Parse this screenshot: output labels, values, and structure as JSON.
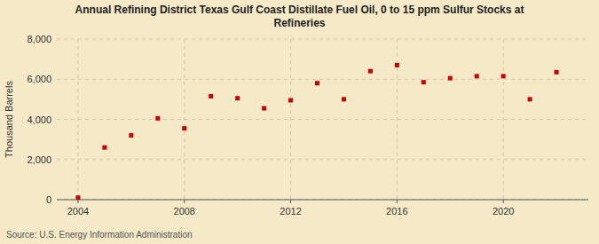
{
  "chart_data": {
    "type": "scatter",
    "title": "Annual Refining District Texas Gulf Coast Distillate Fuel Oil, 0 to 15 ppm Sulfur Stocks at\nRefineries",
    "y_label": "Thousand Barrels",
    "annotations": [
      "Source: U.S. Energy Information Administration"
    ],
    "x": [
      2004,
      2005,
      2006,
      2007,
      2008,
      2009,
      2010,
      2011,
      2012,
      2013,
      2014,
      2015,
      2016,
      2017,
      2018,
      2019,
      2020,
      2021,
      2022
    ],
    "values": [
      100,
      2600,
      3200,
      4050,
      3550,
      5150,
      5050,
      4550,
      4950,
      5800,
      5000,
      6400,
      6700,
      5850,
      6050,
      6150,
      6150,
      5000,
      6350
    ],
    "color": "#cc0000",
    "marker": "square",
    "xlim": [
      2003.2,
      2023.2
    ],
    "xticks": [
      2004,
      2008,
      2012,
      2016,
      2020
    ],
    "ylim": [
      0,
      8000
    ],
    "yticks": [
      0,
      {
        "value": 2000,
        "label": "2,000"
      },
      {
        "value": 4000,
        "label": "4,000"
      },
      {
        "value": 6000,
        "label": "6,000"
      },
      {
        "value": 8000,
        "label": "8,000"
      }
    ],
    "grid": true
  }
}
